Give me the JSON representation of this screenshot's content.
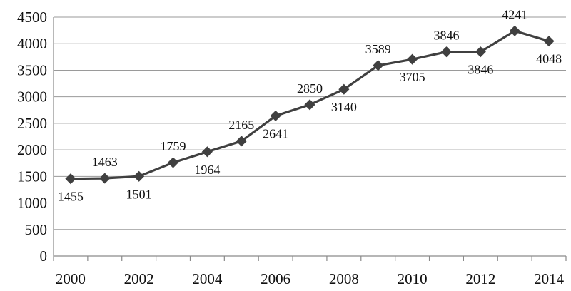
{
  "chart_data": {
    "type": "line",
    "title": "",
    "xlabel": "",
    "ylabel": "",
    "x": [
      2000,
      2001,
      2002,
      2003,
      2004,
      2005,
      2006,
      2007,
      2008,
      2009,
      2010,
      2011,
      2012,
      2013,
      2014
    ],
    "series": [
      {
        "values": [
          1455,
          1463,
          1501,
          1759,
          1964,
          2165,
          2641,
          2850,
          3140,
          3589,
          3705,
          3846,
          3846,
          4241,
          4048
        ],
        "data_labels": [
          "1455",
          "1463",
          "1501",
          "1759",
          "1964",
          "2165",
          "2641",
          "2850",
          "3140",
          "3589",
          "3705",
          "3846",
          "3846",
          "4241",
          "4048"
        ],
        "label_side": [
          "below",
          "above",
          "below",
          "above",
          "below",
          "above",
          "below",
          "above",
          "below",
          "above",
          "below",
          "above",
          "below",
          "above",
          "below"
        ],
        "color": "#404040",
        "marker": "diamond"
      }
    ],
    "xlim": [
      2000,
      2014
    ],
    "ylim": [
      0,
      4500
    ],
    "x_ticks": [
      "2000",
      "2002",
      "2004",
      "2006",
      "2008",
      "2010",
      "2012",
      "2014"
    ],
    "y_ticks": [
      "0",
      "500",
      "1000",
      "1500",
      "2000",
      "2500",
      "3000",
      "3500",
      "4000",
      "4500"
    ],
    "grid": "horizontal",
    "legend": "none"
  }
}
